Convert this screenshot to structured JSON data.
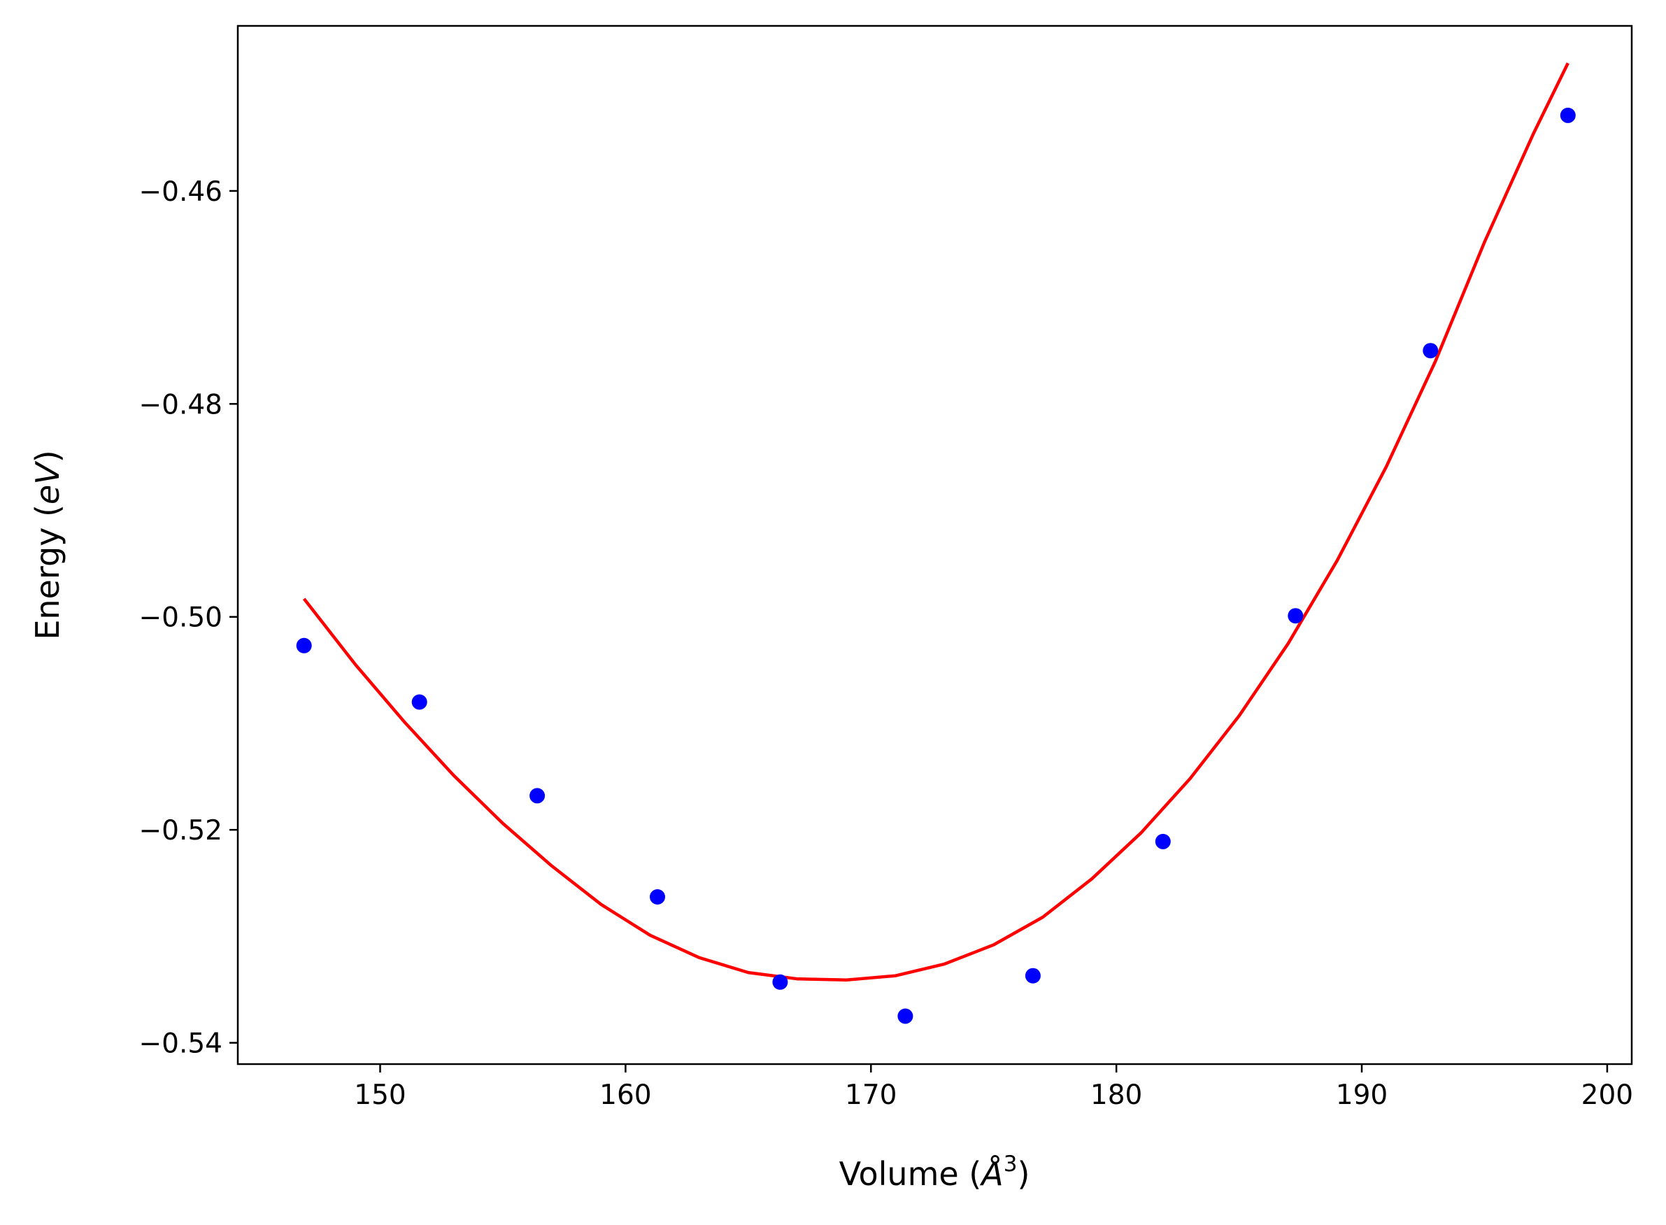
{
  "chart_data": {
    "type": "scatter",
    "title": "",
    "xlabel": {
      "prefix": "Volume (",
      "symbol": "Å",
      "exponent": "3",
      "suffix": ")"
    },
    "ylabel": {
      "prefix": "Energy (",
      "symbol": "eV",
      "suffix": ")"
    },
    "xlim": [
      144.2,
      201.0
    ],
    "ylim": [
      -0.542,
      -0.4445
    ],
    "x_ticks": [
      {
        "value": 150,
        "label": "150"
      },
      {
        "value": 160,
        "label": "160"
      },
      {
        "value": 170,
        "label": "170"
      },
      {
        "value": 180,
        "label": "180"
      },
      {
        "value": 190,
        "label": "190"
      },
      {
        "value": 200,
        "label": "200"
      }
    ],
    "y_ticks": [
      {
        "value": -0.46,
        "label": "−0.46"
      },
      {
        "value": -0.48,
        "label": "−0.48"
      },
      {
        "value": -0.5,
        "label": "−0.50"
      },
      {
        "value": -0.52,
        "label": "−0.52"
      },
      {
        "value": -0.54,
        "label": "−0.54"
      }
    ],
    "grid": false,
    "series": [
      {
        "kind": "scatter",
        "color": "#0000ff",
        "x": [
          146.9,
          151.6,
          156.4,
          161.3,
          166.3,
          171.4,
          176.6,
          181.9,
          187.3,
          192.8,
          198.4
        ],
        "y": [
          -0.5027,
          -0.508,
          -0.5168,
          -0.5263,
          -0.5343,
          -0.5375,
          -0.5337,
          -0.5211,
          -0.4999,
          -0.475,
          -0.4529
        ]
      },
      {
        "kind": "line",
        "color": "#ff0000",
        "x": [
          146.9,
          149.0,
          151.0,
          153.0,
          155.0,
          157.0,
          159.0,
          161.0,
          163.0,
          165.0,
          167.0,
          169.0,
          171.0,
          173.0,
          175.0,
          177.0,
          179.0,
          181.0,
          183.0,
          185.0,
          187.0,
          189.0,
          191.0,
          193.0,
          195.0,
          197.0,
          198.4
        ],
        "y": [
          -0.4983,
          -0.5045,
          -0.5099,
          -0.5149,
          -0.5194,
          -0.5234,
          -0.527,
          -0.5299,
          -0.532,
          -0.5334,
          -0.534,
          -0.5341,
          -0.5337,
          -0.5326,
          -0.5308,
          -0.5282,
          -0.5246,
          -0.5203,
          -0.5152,
          -0.5093,
          -0.5025,
          -0.4947,
          -0.4859,
          -0.476,
          -0.4648,
          -0.4546,
          -0.448
        ]
      }
    ]
  }
}
